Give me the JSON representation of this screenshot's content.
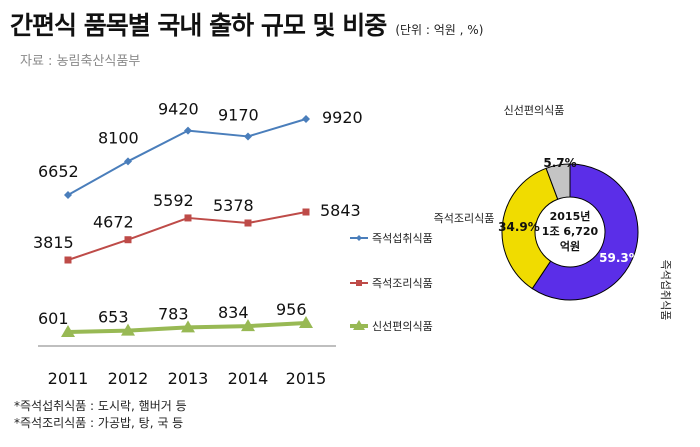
{
  "header": {
    "title": "간편식 품목별 국내 출하 규모 및 비중",
    "unit": "(단위 : 억원 , %)",
    "source": "자료 : 농림축산식품부"
  },
  "footnotes": [
    "*즉석섭취식품 : 도시락, 햄버거 등",
    "*즉석조리식품 : 가공밥, 탕, 국 등"
  ],
  "chart_data": [
    {
      "type": "line",
      "categories": [
        "2011",
        "2012",
        "2013",
        "2014",
        "2015"
      ],
      "series": [
        {
          "name": "즉석섭취식품",
          "values": [
            6652,
            8100,
            9420,
            9170,
            9920
          ],
          "color": "#4a7ebb",
          "marker": "diamond"
        },
        {
          "name": "즉석조리식품",
          "values": [
            3815,
            4672,
            5592,
            5378,
            5843
          ],
          "color": "#be4b48",
          "marker": "square"
        },
        {
          "name": "신선편의식품",
          "values": [
            601,
            653,
            783,
            834,
            956
          ],
          "color": "#98b954",
          "marker": "triangle"
        }
      ],
      "legend": "right",
      "grid": false
    },
    {
      "type": "pie",
      "center_label": [
        "2015년",
        "1조 6,720",
        "억원"
      ],
      "slices": [
        {
          "name": "즉석섭취식품",
          "value": 59.3,
          "label": "59.3%",
          "color": "#5b2ee8"
        },
        {
          "name": "즉석조리식품",
          "value": 34.9,
          "label": "34.9%",
          "color": "#f0dc00"
        },
        {
          "name": "신선편의식품",
          "value": 5.7,
          "label": "5.7%",
          "color": "#c4c4c4"
        }
      ]
    }
  ]
}
